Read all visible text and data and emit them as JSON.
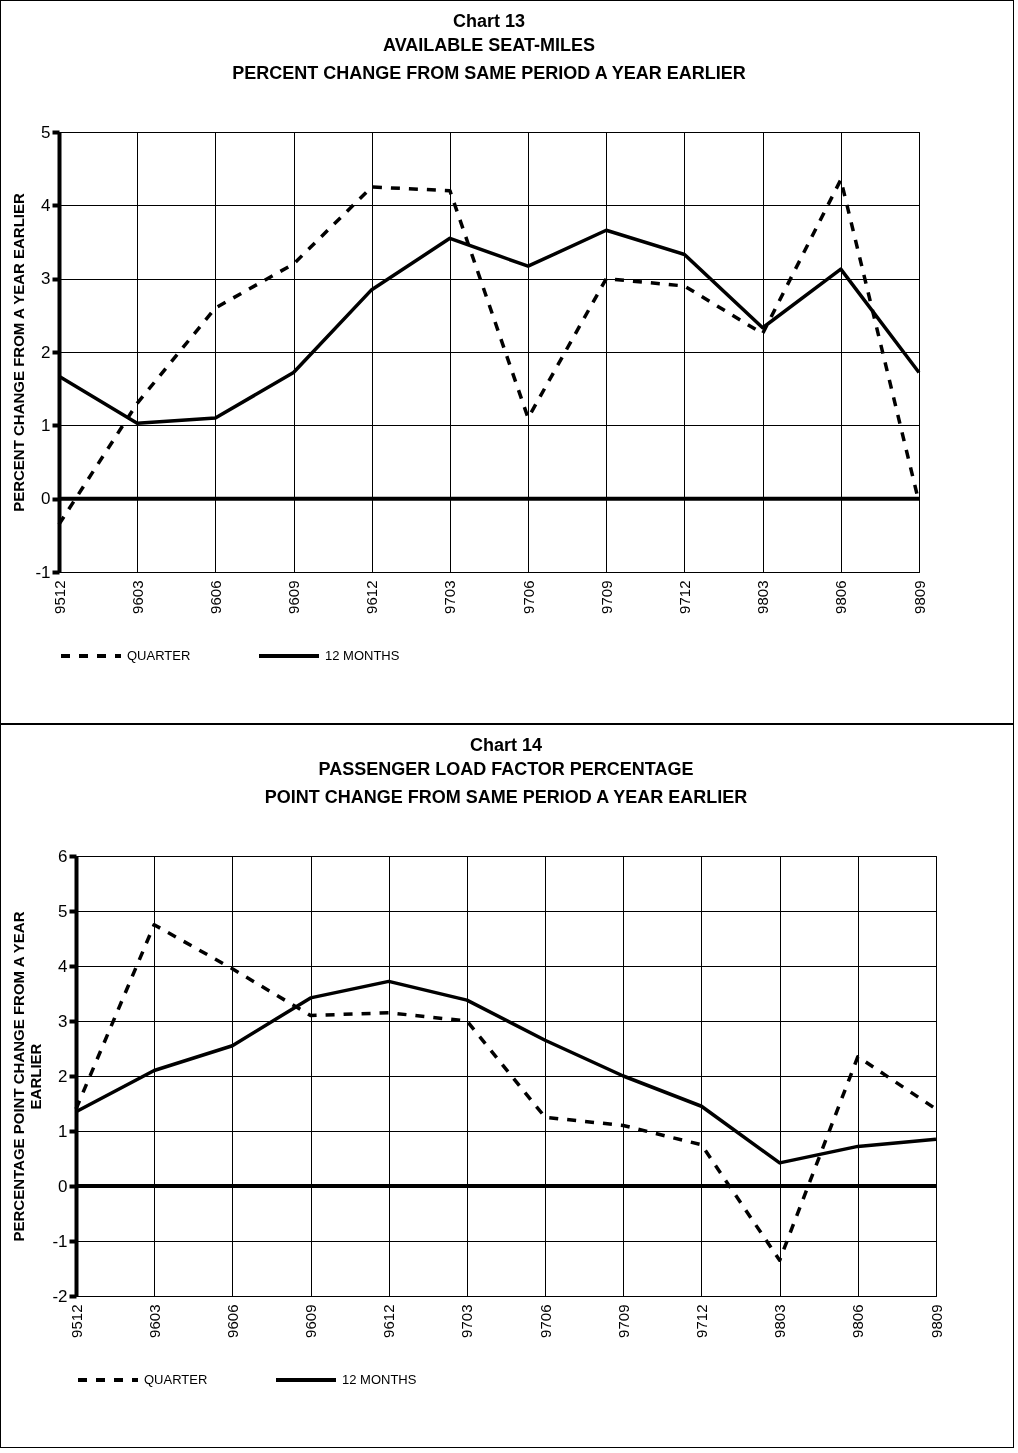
{
  "chart_data": [
    {
      "type": "line",
      "title": "Chart 13",
      "subtitle": "AVAILABLE SEAT-MILES\nPERCENT CHANGE FROM SAME PERIOD A YEAR EARLIER",
      "ylabel": "PERCENT CHANGE FROM A YEAR EARLIER",
      "categories": [
        "9512",
        "9603",
        "9606",
        "9609",
        "9612",
        "9703",
        "9706",
        "9709",
        "9712",
        "9803",
        "9806",
        "9809"
      ],
      "series": [
        {
          "name": "QUARTER",
          "color": "#000000",
          "line_style": "dashed",
          "values": [
            -0.35,
            1.3,
            2.6,
            3.2,
            4.25,
            4.2,
            1.1,
            3.0,
            2.9,
            2.25,
            4.35,
            -0.05
          ]
        },
        {
          "name": "12 MONTHS",
          "color": "#000000",
          "line_style": "solid",
          "values": [
            1.67,
            1.03,
            1.1,
            1.72,
            2.85,
            3.55,
            3.17,
            3.66,
            3.33,
            2.33,
            3.13,
            1.72
          ]
        }
      ],
      "ylim": [
        -1,
        5
      ],
      "yticks": [
        -1,
        0,
        1,
        2,
        3,
        4,
        5
      ],
      "grid": true,
      "legend": "bottom",
      "ref_lines": [
        {
          "axis": "y",
          "value": 0
        }
      ]
    },
    {
      "type": "line",
      "title": "Chart 14",
      "subtitle": "PASSENGER LOAD FACTOR PERCENTAGE\nPOINT CHANGE FROM SAME PERIOD A YEAR EARLIER",
      "ylabel": "PERCENTAGE POINT CHANGE FROM A YEAR EARLIER",
      "categories": [
        "9512",
        "9603",
        "9606",
        "9609",
        "9612",
        "9703",
        "9706",
        "9709",
        "9712",
        "9803",
        "9806",
        "9809"
      ],
      "series": [
        {
          "name": "QUARTER",
          "color": "#000000",
          "line_style": "dashed",
          "values": [
            1.4,
            4.75,
            3.95,
            3.1,
            3.15,
            3.0,
            1.25,
            1.1,
            0.75,
            -1.35,
            2.35,
            1.4
          ]
        },
        {
          "name": "12 MONTHS",
          "color": "#000000",
          "line_style": "solid",
          "values": [
            1.35,
            2.1,
            2.55,
            3.42,
            3.72,
            3.38,
            2.65,
            2.0,
            1.45,
            0.42,
            0.72,
            0.85
          ]
        }
      ],
      "ylim": [
        -2,
        6
      ],
      "yticks": [
        -2,
        -1,
        0,
        1,
        2,
        3,
        4,
        5,
        6
      ],
      "grid": true,
      "legend": "bottom",
      "ref_lines": [
        {
          "axis": "y",
          "value": 0
        }
      ]
    }
  ]
}
